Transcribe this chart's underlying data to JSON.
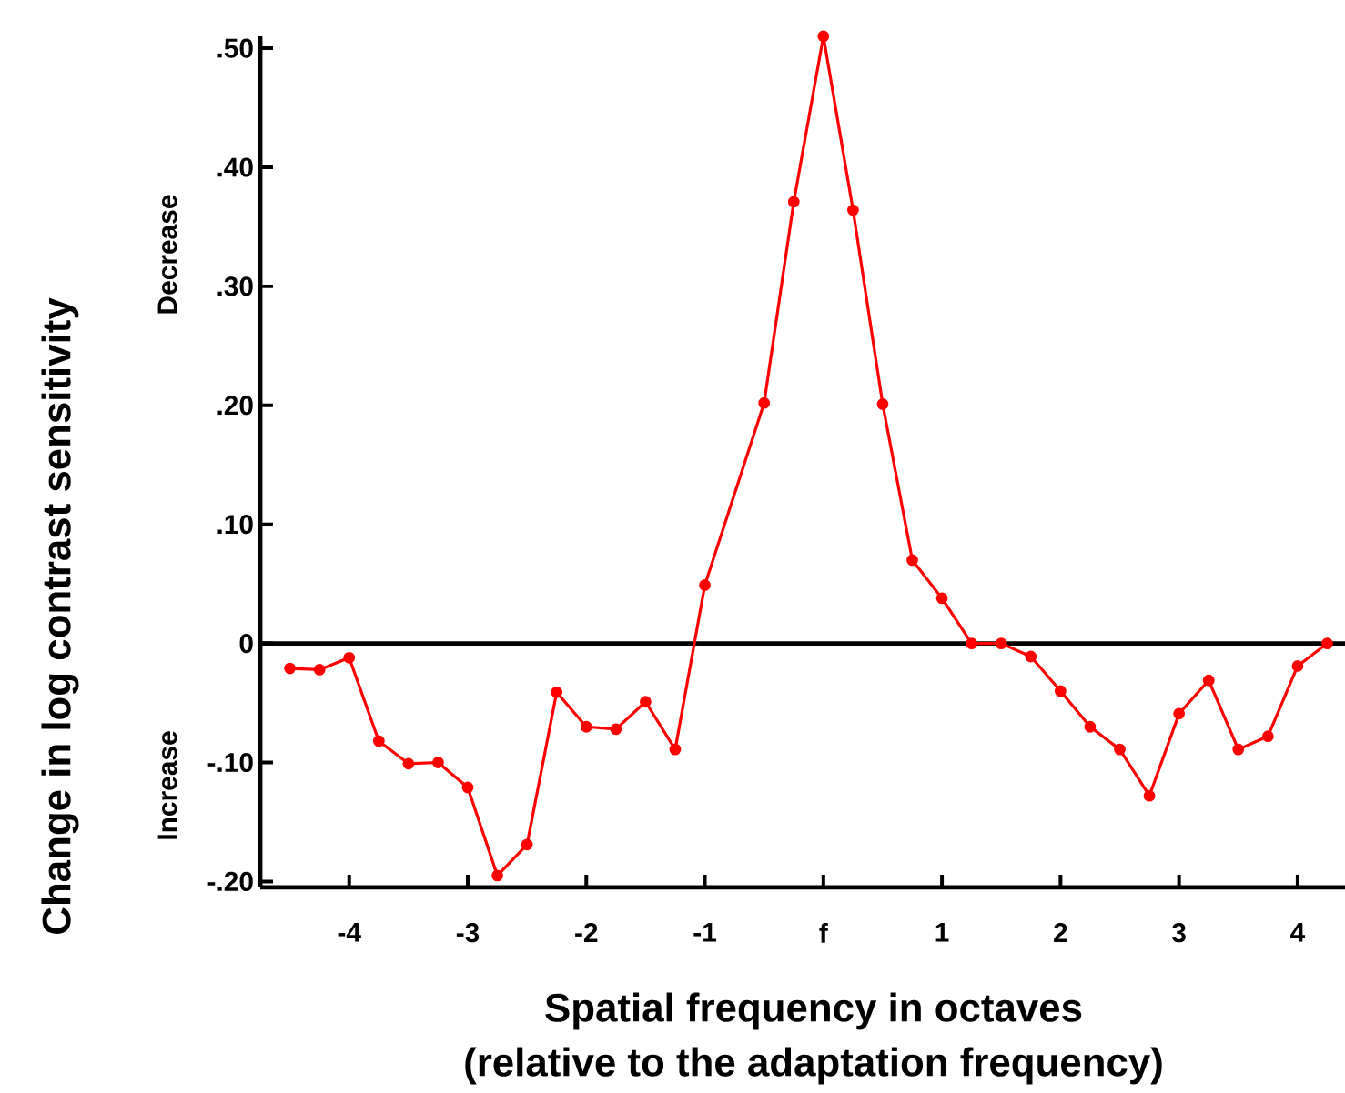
{
  "chart_data": {
    "type": "line",
    "xlabel": "Spatial frequency in octaves",
    "ylabel": "Change in log contrast sensitivity",
    "annotations": [
      "(relative to the adaptation frequency)",
      "Decrease",
      "Increase"
    ],
    "series": [
      {
        "color": "#ff0000",
        "x": [
          -4.5,
          -4.25,
          -4.0,
          -3.75,
          -3.5,
          -3.25,
          -3.0,
          -2.75,
          -2.5,
          -2.25,
          -2.0,
          -1.75,
          -1.5,
          -1.25,
          -1.0,
          -0.5,
          -0.25,
          0,
          0.25,
          0.5,
          0.75,
          1.0,
          1.25,
          1.5,
          1.75,
          2.0,
          2.25,
          2.5,
          2.75,
          3.0,
          3.25,
          3.5,
          3.75,
          4.0,
          4.25
        ],
        "values": [
          -0.021,
          -0.022,
          -0.012,
          -0.082,
          -0.101,
          -0.1,
          -0.121,
          -0.195,
          -0.169,
          -0.041,
          -0.07,
          -0.072,
          -0.049,
          -0.089,
          0.049,
          0.202,
          0.371,
          0.51,
          0.364,
          0.201,
          0.07,
          0.038,
          0.0,
          0.0,
          -0.011,
          -0.04,
          -0.07,
          -0.089,
          -0.128,
          -0.059,
          -0.031,
          -0.089,
          -0.078,
          -0.019,
          0.0
        ]
      }
    ],
    "xlim": [
      -4.75,
      4.4
    ],
    "ylim": [
      -0.205,
      0.51
    ],
    "xticks": [
      -4,
      -3,
      -2,
      -1,
      {
        "value": 0,
        "label": "f"
      },
      1,
      2,
      3,
      4
    ],
    "yticks": [
      {
        "value": -0.2,
        "label": "-.20"
      },
      {
        "value": -0.1,
        "label": "-.10"
      },
      0,
      {
        "value": 0.1,
        "label": ".10"
      },
      {
        "value": 0.2,
        "label": ".20"
      },
      {
        "value": 0.3,
        "label": ".30"
      },
      {
        "value": 0.4,
        "label": ".40"
      },
      {
        "value": 0.5,
        "label": ".50"
      }
    ],
    "ref_lines": [
      {
        "axis": "y",
        "value": 0,
        "color": "#000000"
      }
    ],
    "grid": false,
    "marker": "circle",
    "line_style": "solid"
  }
}
